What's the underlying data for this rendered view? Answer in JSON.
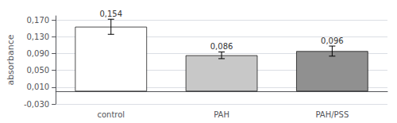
{
  "chart_data": {
    "type": "bar",
    "categories": [
      "control",
      "PAH",
      "PAH/PSS"
    ],
    "values": [
      0.154,
      0.086,
      0.096
    ],
    "errors": [
      0.018,
      0.008,
      0.012
    ],
    "value_labels": [
      "0,154",
      "0,086",
      "0,096"
    ],
    "data_labels": true,
    "colors": [
      "#ffffff",
      "#c8c8c8",
      "#909090"
    ],
    "ylabel": "absorbance",
    "ylim": [
      -0.03,
      0.18
    ],
    "yticks": [
      {
        "value": -0.03,
        "label": "-0,030"
      },
      {
        "value": 0.01,
        "label": "0,010"
      },
      {
        "value": 0.05,
        "label": "0,050"
      },
      {
        "value": 0.09,
        "label": "0,090"
      },
      {
        "value": 0.13,
        "label": "0,130"
      },
      {
        "value": 0.17,
        "label": "0,170"
      }
    ],
    "grid": true
  }
}
